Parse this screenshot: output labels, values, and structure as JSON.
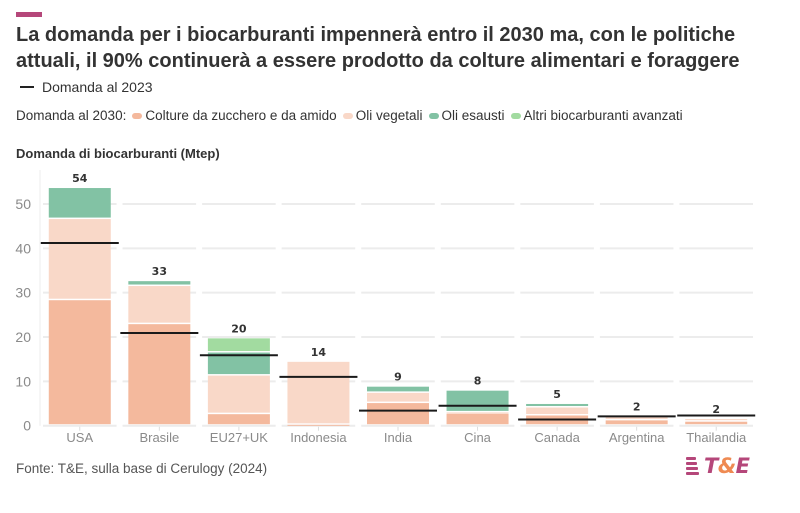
{
  "header": {
    "title": "La domanda per i biocarburanti impennerà entro il 2030 ma, con le politiche attuali, il 90% continuerà a essere prodotto da colture alimentari e foraggere",
    "line_legend": "Domanda al 2023",
    "legend_prefix": "Domanda al 2030:"
  },
  "footer": {
    "source": "Fonte: T&E, sulla base di Cerulogy (2024)",
    "logo_text_a": "T",
    "logo_text_amp": "&",
    "logo_text_b": "E"
  },
  "colors": {
    "accent": "#b5477a",
    "sugar_starch": "#f4b99d",
    "vegetable_oils": "#f9d8c8",
    "waste_oils": "#82c2a4",
    "advanced": "#a2dba0",
    "line_2023": "#1a1a1a",
    "grid": "#ececec",
    "axis_text": "#8a8a8a"
  },
  "chart_data": {
    "type": "bar",
    "stacked": true,
    "title": "La domanda per i biocarburanti impennerà entro il 2030 ma, con le politiche attuali, il 90% continuerà a essere prodotto da colture alimentari e foraggere",
    "ylabel": "Domanda di biocarburanti (Mtep)",
    "xlabel": "",
    "ylim": [
      0,
      56
    ],
    "yticks": [
      0,
      10,
      20,
      30,
      40,
      50
    ],
    "grid": true,
    "legend_position": "top-left",
    "categories": [
      "USA",
      "Brasile",
      "EU27+UK",
      "Indonesia",
      "India",
      "Cina",
      "Canada",
      "Argentina",
      "Thailandia"
    ],
    "series": [
      {
        "name": "Colture da zucchero e da amido",
        "color_key": "sugar_starch",
        "values": [
          28.3,
          22.9,
          2.6,
          0.2,
          5.1,
          2.7,
          2.3,
          1.2,
          0.9
        ]
      },
      {
        "name": "Oli vegetali",
        "color_key": "vegetable_oils",
        "values": [
          18.3,
          8.6,
          8.7,
          14.2,
          2.3,
          0.3,
          1.8,
          0.9,
          0.6
        ]
      },
      {
        "name": "Oli esausti",
        "color_key": "waste_oils",
        "values": [
          7.0,
          1.1,
          5.2,
          0.0,
          1.4,
          4.9,
          0.8,
          0.0,
          0.0
        ]
      },
      {
        "name": "Altri biocarburanti avanzati",
        "color_key": "advanced",
        "values": [
          0.0,
          0.0,
          3.2,
          0.0,
          0.0,
          0.0,
          0.0,
          0.0,
          0.0
        ]
      }
    ],
    "total_labels": [
      "54",
      "33",
      "20",
      "14",
      "9",
      "8",
      "5",
      "2",
      "2"
    ],
    "line_series": {
      "name": "Domanda al 2023",
      "values": [
        41.2,
        20.9,
        15.9,
        11.0,
        3.4,
        4.5,
        1.4,
        2.1,
        2.3
      ]
    }
  }
}
